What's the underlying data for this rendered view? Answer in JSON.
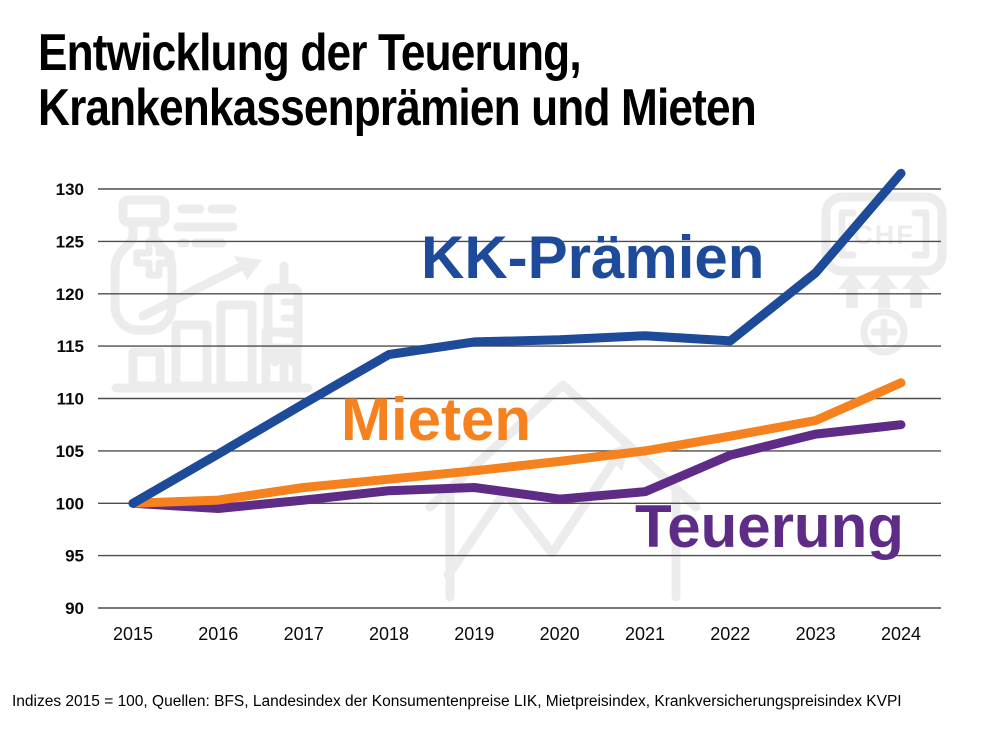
{
  "title": {
    "line1": "Entwicklung der Teuerung,",
    "line2": "Krankenkassenprämien und Mieten"
  },
  "series_labels": {
    "kk": "KK-Prämien",
    "mieten": "Mieten",
    "teuerung": "Teuerung"
  },
  "watermarks": {
    "chf_label": "CHF"
  },
  "footer": {
    "text": "Indizes 2015 = 100, Quellen: BFS, Landesindex der Konsumentenpreise LIK, Mietpreisindex, Krankversicherungspreisindex KVPI"
  },
  "colors": {
    "kk_praemien": "#1d4a99",
    "mieten": "#f5821e",
    "teuerung": "#5e2c87",
    "gridline": "#4d4d4d",
    "tick_text": "#0a0a0a",
    "watermark": "#ececec",
    "background": "#ffffff",
    "title_text": "#000000"
  },
  "chart_data": {
    "type": "line",
    "title": "Entwicklung der Teuerung, Krankenkassenprämien und Mieten",
    "x": [
      2015,
      2016,
      2017,
      2018,
      2019,
      2020,
      2021,
      2022,
      2023,
      2024
    ],
    "series": [
      {
        "name": "KK-Prämien",
        "slug": "kk-praemien",
        "color_key": "kk_praemien",
        "values": [
          100,
          104.7,
          109.5,
          114.2,
          115.4,
          115.6,
          116.0,
          115.5,
          122.0,
          131.5
        ]
      },
      {
        "name": "Mieten",
        "slug": "mieten",
        "color_key": "mieten",
        "values": [
          100,
          100.3,
          101.5,
          102.3,
          103.1,
          104.0,
          105.0,
          106.4,
          107.9,
          111.5
        ]
      },
      {
        "name": "Teuerung",
        "slug": "teuerung",
        "color_key": "teuerung",
        "values": [
          100,
          99.5,
          100.3,
          101.2,
          101.5,
          100.4,
          101.1,
          104.6,
          106.6,
          107.5
        ]
      }
    ],
    "xlabel": "",
    "ylabel": "",
    "ylim": [
      90,
      132
    ],
    "yticks": [
      90,
      95,
      100,
      105,
      110,
      115,
      120,
      125,
      130
    ],
    "grid": true,
    "legend": "inline-colored-labels",
    "baseline_note": "Indizes 2015 = 100"
  }
}
